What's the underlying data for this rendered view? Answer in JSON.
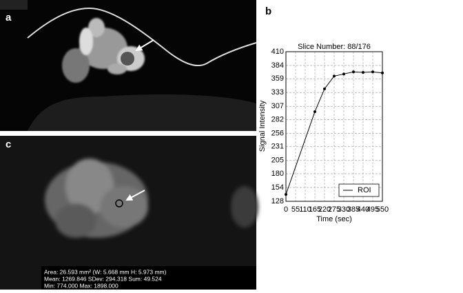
{
  "panel_labels": [
    "a",
    "b",
    "c"
  ],
  "roi_stats": [
    "Area: 26.593 mm² (W: 5.668 mm H: 5.973 mm)",
    "Mean: 1269.846 SDev: 294.318 Sum: 49.524",
    "Min: 774.000 Max: 1898.000"
  ],
  "chart_data": {
    "type": "line",
    "title": "Slice Number: 88/176",
    "x_label": "Time (sec)",
    "y_label": "Signal Intensity",
    "x": [
      0,
      165,
      220,
      275,
      330,
      385,
      440,
      495,
      550
    ],
    "series": [
      {
        "name": "ROI",
        "color": "#000000",
        "values": [
          141,
          297,
          340,
          364,
          368,
          372,
          371,
          372,
          370
        ]
      }
    ],
    "xlim": [
      0,
      550
    ],
    "ylim": [
      128,
      410
    ],
    "xticks": [
      0,
      55,
      110,
      165,
      220,
      275,
      330,
      385,
      440,
      495,
      550
    ],
    "yticks": [
      128,
      154,
      180,
      205,
      231,
      256,
      282,
      307,
      333,
      359,
      384,
      410
    ],
    "grid": true,
    "legend": "lower right"
  }
}
